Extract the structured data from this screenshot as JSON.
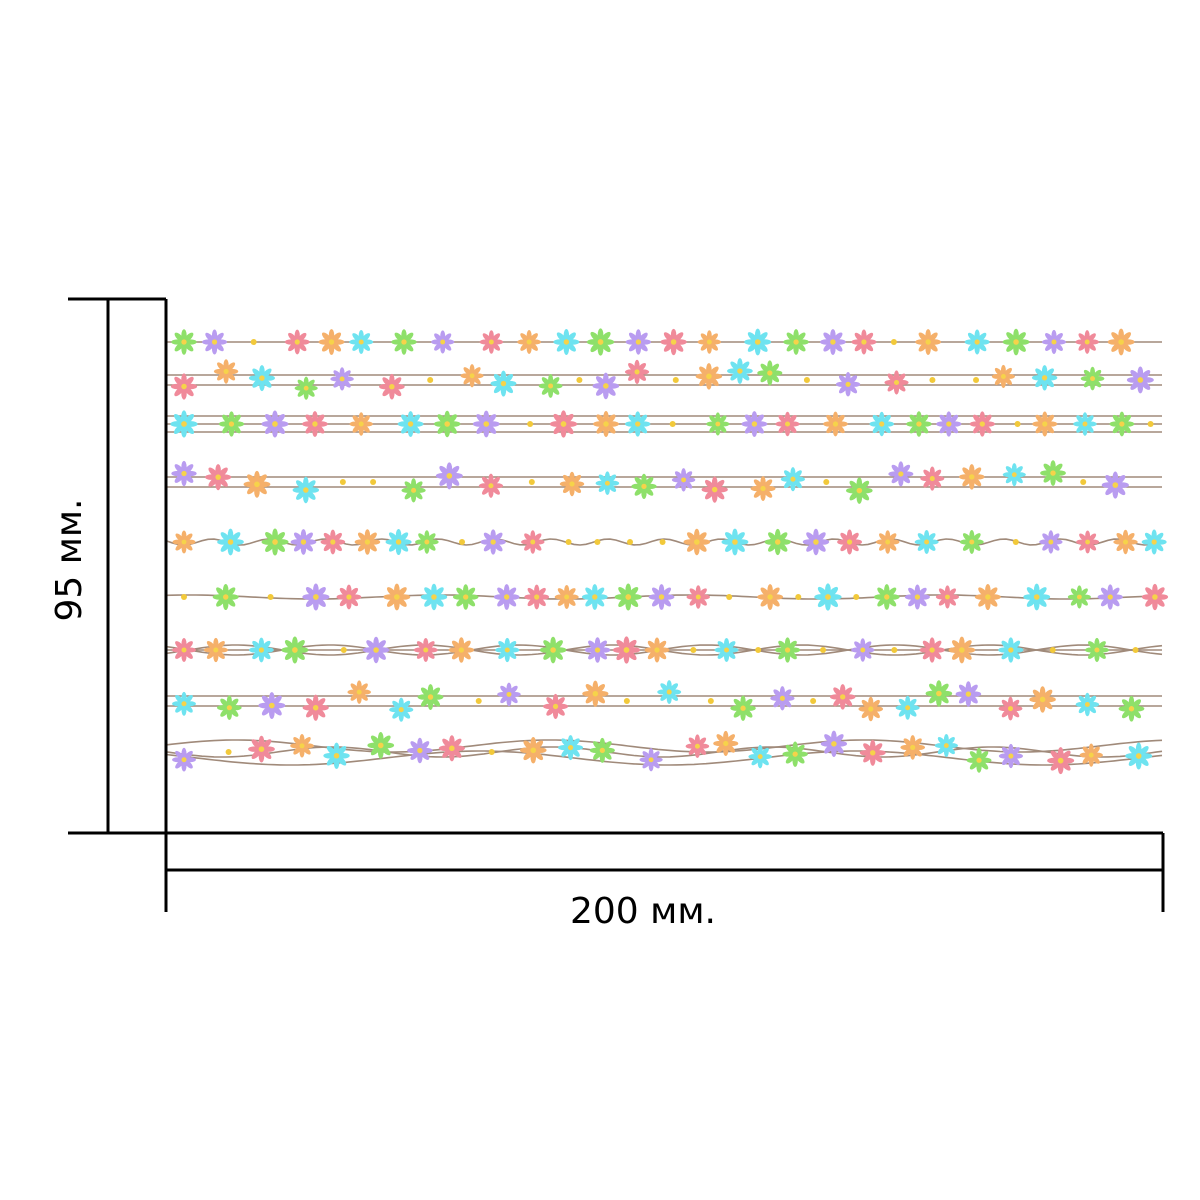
{
  "dimensions": {
    "width_label": "200 мм.",
    "height_label": "95 мм."
  },
  "palette": {
    "stem": "#a08a7a",
    "center": "#f6d34a",
    "dot": "#f2c93a",
    "line": "#000000",
    "petals": [
      "#8ee06a",
      "#b99cf0",
      "#f08a9a",
      "#f5b06a",
      "#6ee3f0"
    ]
  },
  "pattern": {
    "strip_count": 9,
    "strip_styles": [
      "single",
      "double",
      "triple",
      "double",
      "wavy",
      "gentle",
      "braid",
      "double",
      "tangled"
    ]
  }
}
